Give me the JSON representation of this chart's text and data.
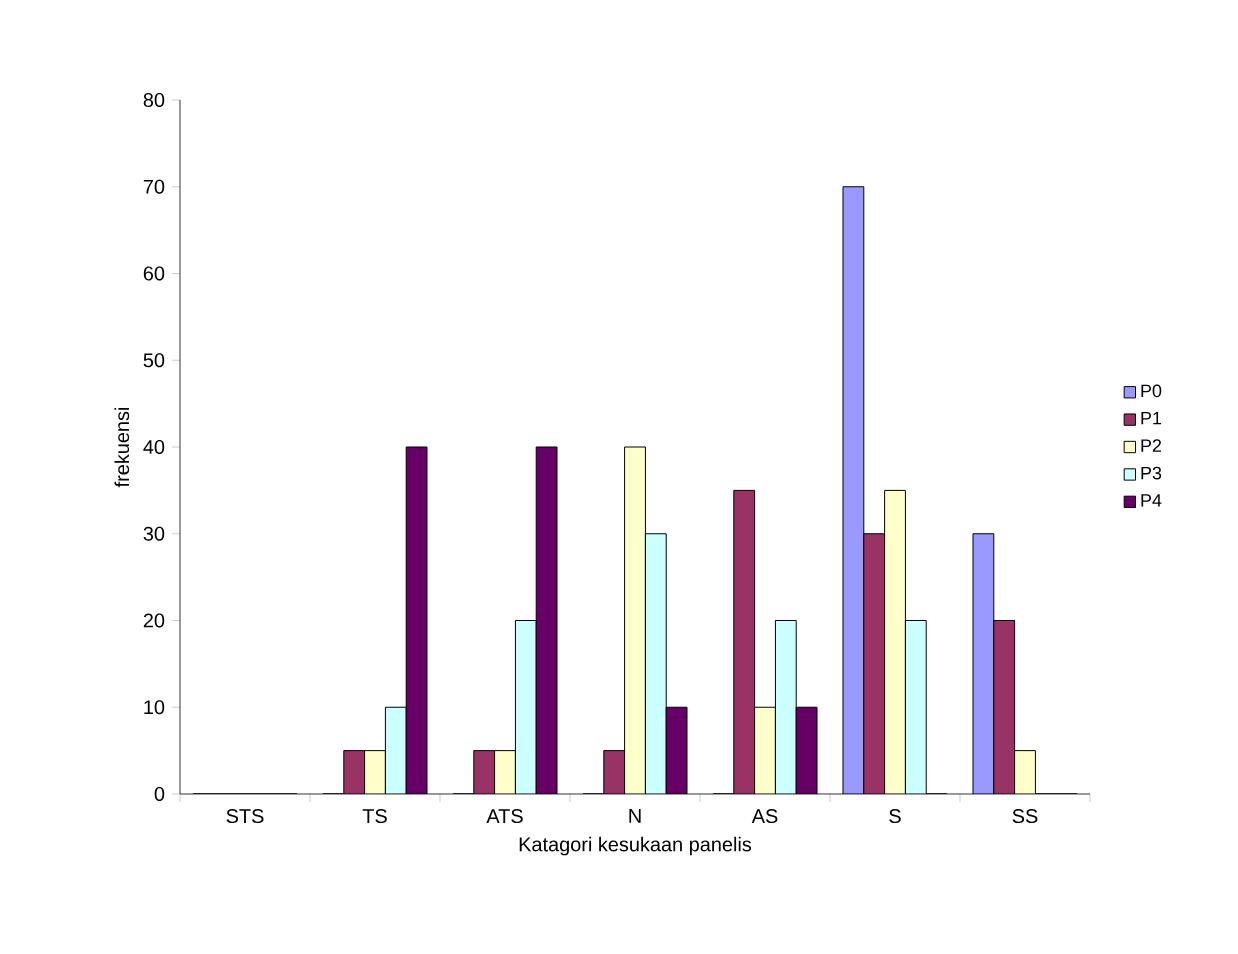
{
  "chart_data": {
    "type": "bar",
    "xlabel": "Katagori kesukaan panelis",
    "ylabel": "frekuensi",
    "categories": [
      "STS",
      "TS",
      "ATS",
      "N",
      "AS",
      "S",
      "SS"
    ],
    "series": [
      {
        "name": "P0",
        "color": "#9999ff",
        "values": [
          0,
          0,
          0,
          0,
          0,
          70,
          30
        ]
      },
      {
        "name": "P1",
        "color": "#993366",
        "values": [
          0,
          5,
          5,
          5,
          35,
          30,
          20
        ]
      },
      {
        "name": "P2",
        "color": "#ffffcc",
        "values": [
          0,
          5,
          5,
          40,
          10,
          35,
          5
        ]
      },
      {
        "name": "P3",
        "color": "#ccffff",
        "values": [
          0,
          10,
          20,
          30,
          20,
          20,
          0
        ]
      },
      {
        "name": "P4",
        "color": "#660066",
        "values": [
          0,
          40,
          40,
          10,
          10,
          0,
          0
        ]
      }
    ],
    "ylim": [
      0,
      80
    ],
    "yticks": [
      0,
      10,
      20,
      30,
      40,
      50,
      60,
      70,
      80
    ],
    "grid": false,
    "legend": "right"
  }
}
